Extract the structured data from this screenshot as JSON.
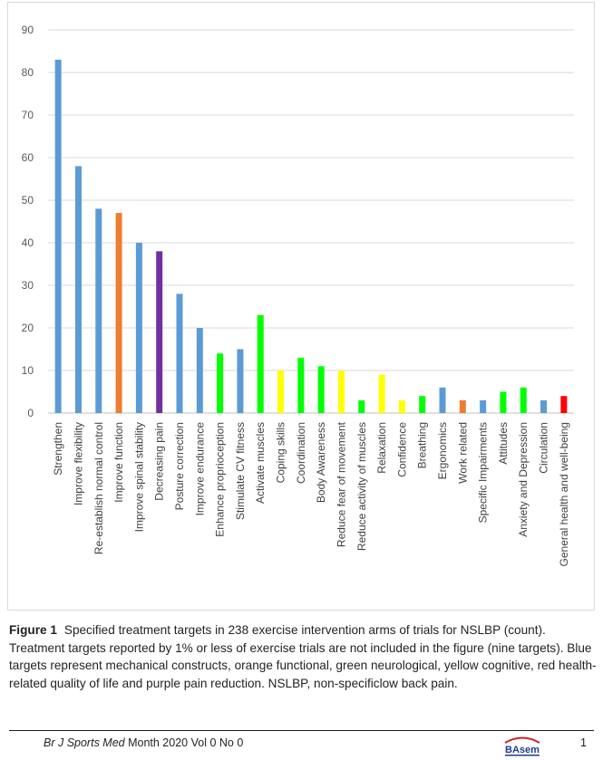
{
  "chart_data": {
    "type": "bar",
    "title": "",
    "xlabel": "",
    "ylabel": "",
    "ylim": [
      0,
      90
    ],
    "yticks": [
      0,
      10,
      20,
      30,
      40,
      50,
      60,
      70,
      80,
      90
    ],
    "grid": true,
    "legend": "none",
    "categories": [
      "Strengthen",
      "Improve flexibility",
      "Re-establish normal control",
      "Improve function",
      "Improve spinal stability",
      "Decreasing pain",
      "Posture correction",
      "Improve endurance",
      "Enhance proprioception",
      "Stimulate CV fitness",
      "Activate muscles",
      "Coping skills",
      "Coordination",
      "Body Awareness",
      "Reduce fear of movement",
      "Reduce activity of muscles",
      "Relaxation",
      "Confidence",
      "Breathing",
      "Ergonomics",
      "Work related",
      "Specific Impairments",
      "Attitudes",
      "Anxiety and Depression",
      "Circulation",
      "General health and well-being"
    ],
    "values": [
      83,
      58,
      48,
      47,
      40,
      38,
      28,
      20,
      14,
      15,
      23,
      10,
      13,
      11,
      10,
      3,
      9,
      3,
      4,
      6,
      3,
      3,
      5,
      6,
      3,
      4
    ],
    "bar_colors": [
      "#5b9bd5",
      "#5b9bd5",
      "#5b9bd5",
      "#ed7d31",
      "#5b9bd5",
      "#7030a0",
      "#5b9bd5",
      "#5b9bd5",
      "#00ff00",
      "#5b9bd5",
      "#00ff00",
      "#ffff00",
      "#00ff00",
      "#00ff00",
      "#ffff00",
      "#00ff00",
      "#ffff00",
      "#ffff00",
      "#00ff00",
      "#5b9bd5",
      "#ed7d31",
      "#5b9bd5",
      "#00ff00",
      "#00ff00",
      "#5b9bd5",
      "#ff0000"
    ]
  },
  "caption": {
    "label": "Figure 1",
    "text": "Specified treatment targets in 238 exercise intervention arms of trials for NSLBP (count). Treatment targets reported by 1% or less of exercise trials are not included in the figure (nine targets). Blue targets represent mechanical constructs, orange functional, green neurological, yellow cognitive, red health-related quality of life and purple pain reduction. NSLBP, non-specificlow back pain."
  },
  "footer": {
    "journal": "Br J Sports Med",
    "issue": " Month 2020 Vol 0 No 0",
    "logo_text": "BAsem",
    "page": "1"
  }
}
